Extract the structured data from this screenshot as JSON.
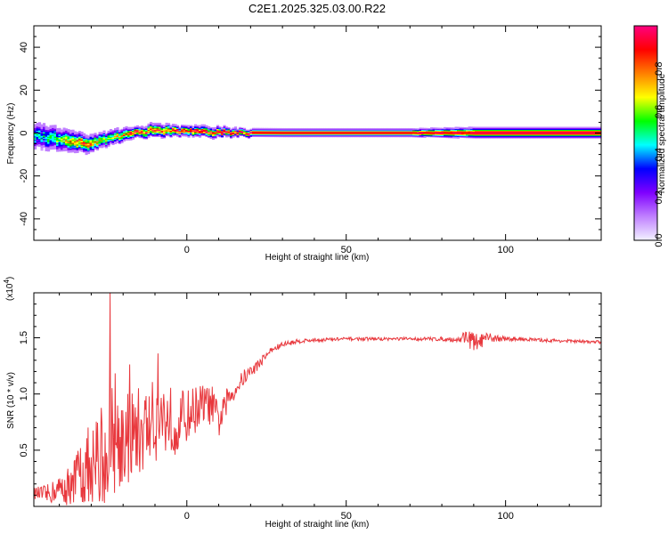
{
  "chart_data": [
    {
      "type": "heatmap",
      "title": "C2E1.2025.325.03.00.R22",
      "xlabel": "Height of straight line (km)",
      "ylabel": "Frequency (Hz)",
      "xlim": [
        -48,
        130
      ],
      "ylim": [
        -50,
        50
      ],
      "xticks": [
        0,
        50,
        100
      ],
      "yticks": [
        -40,
        -20,
        0,
        20,
        40
      ],
      "grid": false,
      "ridge": {
        "x": [
          -48,
          -44,
          -40,
          -36,
          -32,
          -28,
          -24,
          -20,
          -16,
          -12,
          -8,
          -4,
          0,
          4,
          8,
          12,
          16,
          20,
          30,
          50,
          70,
          90,
          110,
          130
        ],
        "freq": [
          -1,
          -2,
          -3,
          -4,
          -5,
          -4,
          -2,
          -1,
          0,
          1,
          1,
          1,
          0.5,
          0.5,
          0.3,
          0.3,
          0.2,
          0.2,
          0.1,
          0.1,
          0.1,
          0.1,
          0.1,
          0.1
        ],
        "amplitude": [
          0.5,
          0.5,
          0.6,
          0.8,
          0.85,
          0.7,
          0.6,
          0.8,
          0.9,
          0.9,
          0.85,
          0.9,
          0.95,
          0.95,
          0.9,
          0.95,
          0.95,
          0.95,
          0.95,
          0.95,
          0.95,
          0.95,
          0.95,
          0.95
        ],
        "width_hz": [
          10,
          10,
          9,
          8,
          7,
          6,
          6,
          5,
          4,
          5,
          5,
          4,
          4,
          4,
          4,
          3.5,
          3,
          3,
          3,
          3,
          3,
          4,
          4,
          4
        ]
      },
      "colorbar": {
        "label": "Normalized spectral amplitude",
        "range": [
          0,
          1
        ],
        "ticks": [
          "0.0",
          "0.2",
          "0.4",
          "0.6",
          "0.8"
        ],
        "colors": [
          "#f2f2ff",
          "#c080ff",
          "#7f00ff",
          "#0000ff",
          "#00ffff",
          "#00ff00",
          "#ffff00",
          "#ff7f00",
          "#ff0000",
          "#ff0080"
        ]
      }
    },
    {
      "type": "line",
      "title": "",
      "xlabel": "Height of straight line (km)",
      "ylabel": "SNR (10 * v/v)",
      "scale_note": "(x10",
      "scale_exp": "4",
      "scale_close": ")",
      "xlim": [
        -48,
        130
      ],
      "ylim": [
        0,
        19000
      ],
      "xticks": [
        0,
        50,
        100
      ],
      "yticks": [
        5000,
        10000,
        15000
      ],
      "ytick_labels": [
        "0.5",
        "1.0",
        "1.5"
      ],
      "color": "#e8383d",
      "series": [
        {
          "x": [
            -48,
            -44,
            -40,
            -36,
            -33,
            -30,
            -26,
            -24,
            -20,
            -16,
            -12,
            -8,
            -4,
            0,
            4,
            8,
            10,
            14,
            18,
            22,
            26,
            30,
            35,
            40,
            50,
            60,
            70,
            80,
            85,
            88,
            90,
            93,
            96,
            100,
            105,
            110,
            120,
            130
          ],
          "y": [
            1200,
            1000,
            1600,
            1600,
            3200,
            3200,
            4500,
            6000,
            6000,
            6500,
            7000,
            8000,
            7500,
            8000,
            9000,
            9000,
            7500,
            10000,
            11500,
            12500,
            13800,
            14400,
            14700,
            14800,
            14900,
            14900,
            14900,
            14900,
            14800,
            15200,
            14500,
            14800,
            15000,
            14900,
            14900,
            14800,
            14700,
            14600
          ],
          "noise": [
            500,
            900,
            1100,
            2500,
            3200,
            4200,
            5000,
            5000,
            4500,
            4200,
            3800,
            3500,
            3000,
            2400,
            2000,
            1700,
            1500,
            1000,
            700,
            500,
            300,
            250,
            200,
            180,
            150,
            150,
            150,
            180,
            200,
            900,
            900,
            600,
            400,
            200,
            180,
            150,
            150,
            150
          ]
        }
      ]
    }
  ]
}
